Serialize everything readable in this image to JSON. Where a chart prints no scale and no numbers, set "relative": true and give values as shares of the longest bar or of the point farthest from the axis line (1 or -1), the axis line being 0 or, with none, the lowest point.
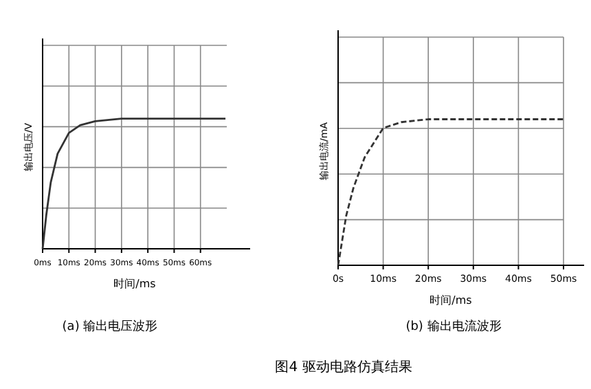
{
  "chart_data": [
    {
      "type": "line",
      "title": "(a) 输出电压波形",
      "xlabel": "时间/ms",
      "ylabel": "输出电压/V",
      "relative": true,
      "xlim": [
        0,
        70
      ],
      "xticks": [
        {
          "value": 0,
          "label": "0ms"
        },
        {
          "value": 10,
          "label": "10ms"
        },
        {
          "value": 20,
          "label": "20ms"
        },
        {
          "value": 30,
          "label": "30ms"
        },
        {
          "value": 40,
          "label": "40ms"
        },
        {
          "value": 50,
          "label": "50ms"
        },
        {
          "value": 60,
          "label": "60ms"
        }
      ],
      "grid": true,
      "line_style": "solid",
      "series": [
        {
          "color": "#333333",
          "x": [
            0,
            1.4,
            3.1,
            5.7,
            10,
            14.3,
            20,
            30,
            40,
            45,
            50,
            60,
            69.5
          ],
          "values": [
            0,
            0.26,
            0.51,
            0.73,
            0.89,
            0.95,
            0.98,
            1,
            1,
            1,
            1,
            1,
            1
          ]
        }
      ],
      "annotations": [
        "图4 驱动电路仿真结果"
      ]
    },
    {
      "type": "line",
      "title": "(b) 输出电流波形",
      "xlabel": "时间/ms",
      "ylabel": "输出电流/mA",
      "relative": true,
      "xlim": [
        0,
        50
      ],
      "xticks": [
        {
          "value": 0,
          "label": "0s"
        },
        {
          "value": 10,
          "label": "10ms"
        },
        {
          "value": 20,
          "label": "20ms"
        },
        {
          "value": 30,
          "label": "30ms"
        },
        {
          "value": 40,
          "label": "40ms"
        },
        {
          "value": 50,
          "label": "50ms"
        }
      ],
      "grid": true,
      "line_style": "dashed",
      "series": [
        {
          "color": "#333333",
          "x": [
            0,
            0.8,
            1.8,
            3.4,
            5.9,
            10,
            14,
            20,
            30,
            40,
            50
          ],
          "values": [
            0,
            0.15,
            0.34,
            0.53,
            0.74,
            0.94,
            0.98,
            1,
            1,
            1,
            1
          ]
        }
      ]
    }
  ]
}
